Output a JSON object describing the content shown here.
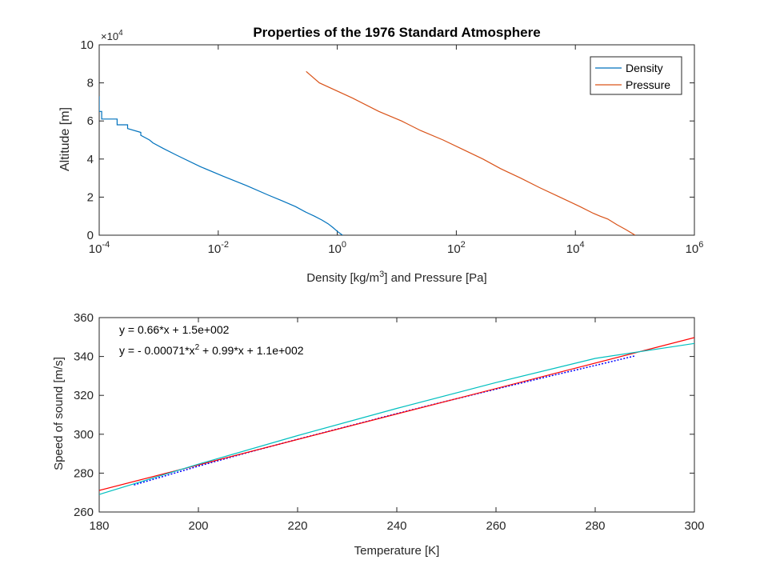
{
  "chart_data": [
    {
      "type": "line",
      "title": "Properties of the 1976 Standard Atmosphere",
      "xlabel_prefix": "Density [kg/m",
      "xlabel_sup": "3",
      "xlabel_suffix": "] and Pressure [Pa]",
      "ylabel": "Altitude [m]",
      "x_scale": "log",
      "xlim": [
        0.0001,
        1000000
      ],
      "ylim": [
        0,
        100000
      ],
      "x_ticks": [
        {
          "value": 0.0001,
          "base": "10",
          "exp": "-4"
        },
        {
          "value": 0.01,
          "base": "10",
          "exp": "-2"
        },
        {
          "value": 1,
          "base": "10",
          "exp": "0"
        },
        {
          "value": 100,
          "base": "10",
          "exp": "2"
        },
        {
          "value": 10000,
          "base": "10",
          "exp": "4"
        },
        {
          "value": 1000000,
          "base": "10",
          "exp": "6"
        }
      ],
      "y_ticks": [
        {
          "value": 0,
          "label": "0"
        },
        {
          "value": 20000,
          "label": "2"
        },
        {
          "value": 40000,
          "label": "4"
        },
        {
          "value": 60000,
          "label": "6"
        },
        {
          "value": 80000,
          "label": "8"
        },
        {
          "value": 100000,
          "label": "10"
        }
      ],
      "y_multiplier": {
        "base": "×10",
        "exp": "4"
      },
      "grid": false,
      "legend_position": "top-right",
      "series": [
        {
          "name": "Density",
          "color": "#0072BD",
          "x": [
            1.225,
            1.0,
            0.85,
            0.7,
            0.55,
            0.413,
            0.3,
            0.2,
            0.12,
            0.07,
            0.03,
            0.012,
            0.005,
            0.002,
            0.0012,
            0.0008,
            0.0007,
            0.0005,
            0.0005,
            0.0003,
            0.0003,
            0.0002,
            0.0002,
            0.00011,
            0.00011,
            0.0001,
            0.0001
          ],
          "y": [
            0,
            2000,
            4000,
            6000,
            8000,
            10000,
            12000,
            15000,
            18000,
            21000,
            26000,
            31000,
            36000,
            42000,
            45500,
            48500,
            50000,
            52500,
            54000,
            56000,
            58000,
            58000,
            61000,
            61000,
            65000,
            65000,
            73000
          ]
        },
        {
          "name": "Pressure",
          "color": "#D95319",
          "x": [
            101325,
            70000,
            50000,
            35000,
            26000,
            20000,
            12000,
            5500,
            2500,
            1200,
            550,
            280,
            130,
            60,
            25,
            12,
            5,
            1.8,
            0.5,
            0.3
          ],
          "y": [
            0,
            3000,
            5500,
            8500,
            10000,
            11500,
            15000,
            20000,
            25000,
            30000,
            35000,
            40000,
            45000,
            50000,
            55000,
            60000,
            65000,
            72000,
            80000,
            86000
          ]
        }
      ]
    },
    {
      "type": "line",
      "title": "",
      "xlabel": "Temperature [K]",
      "ylabel": "Speed of sound [m/s]",
      "xlim": [
        180,
        300
      ],
      "ylim": [
        260,
        360
      ],
      "x_ticks": [
        180,
        200,
        220,
        240,
        260,
        280,
        300
      ],
      "y_ticks": [
        260,
        280,
        300,
        320,
        340,
        360
      ],
      "grid": false,
      "annotations": [
        {
          "text": "y = 0.66*x + 1.5e+002"
        },
        {
          "text": "y = - 0.00071*x^2 + 0.99*x + 1.1e+002",
          "text_prefix": "y = - 0.00071*x",
          "text_sup": "2",
          "text_suffix": " + 0.99*x + 1.1e+002"
        }
      ],
      "series": [
        {
          "style": "data",
          "color": "#0000FF",
          "x": [
            187,
            200,
            210,
            220,
            230,
            240,
            250,
            260,
            270,
            280,
            288
          ],
          "y": [
            273.9,
            283.6,
            290.6,
            297.4,
            304.0,
            310.6,
            317.0,
            323.2,
            329.4,
            335.4,
            340.3
          ]
        },
        {
          "style": "linear-fit",
          "color": "#FF0000",
          "x": [
            180,
            300
          ],
          "y": [
            271.1,
            349.7
          ]
        },
        {
          "style": "quadratic-fit",
          "color": "#00BFBF",
          "x": [
            180,
            200,
            220,
            240,
            260,
            280,
            300
          ],
          "y": [
            269.0,
            284.6,
            299.3,
            313.3,
            326.6,
            339.0,
            346.7
          ]
        }
      ]
    }
  ]
}
